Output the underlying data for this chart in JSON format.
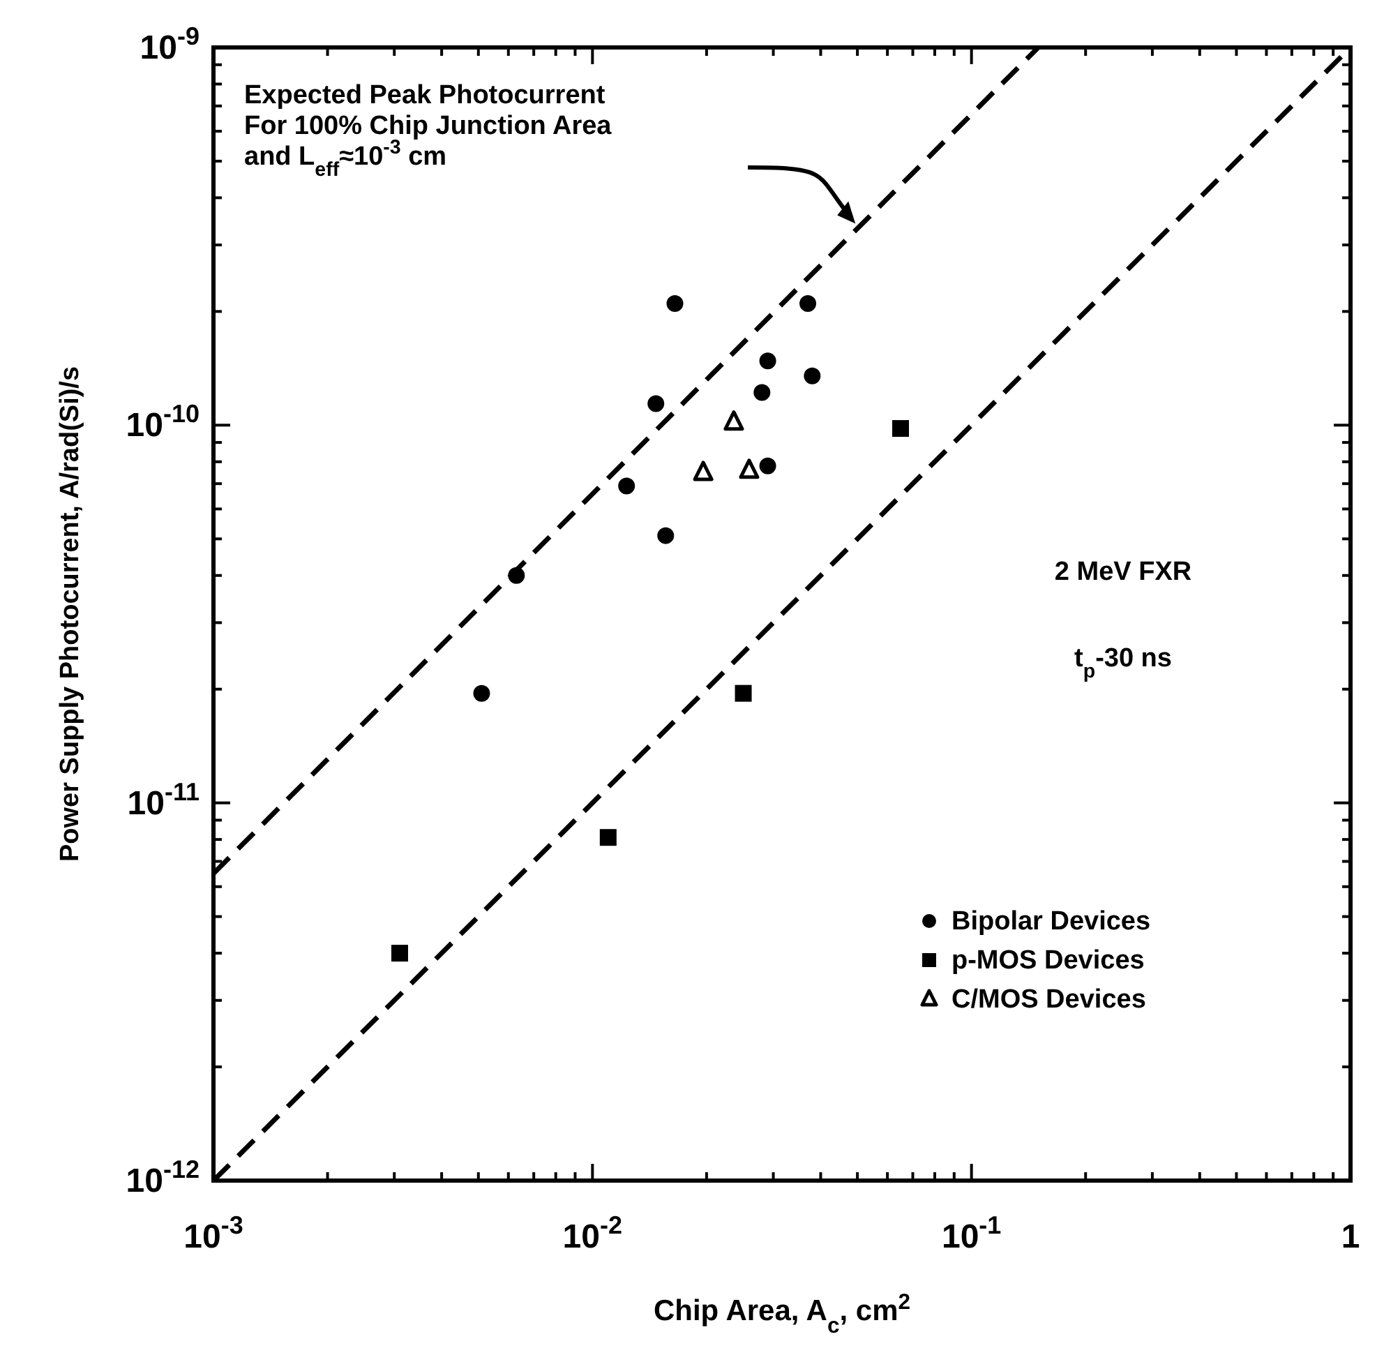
{
  "chart_data": {
    "type": "scatter",
    "xlabel": "Chip Area,  A$_{c}$, cm$^{2}$",
    "ylabel": "Power Supply Photocurrent, A/rad(Si)/s",
    "log": "xy",
    "xlim": [
      0.001,
      1
    ],
    "ylim": [
      1e-12,
      1e-09
    ],
    "xticks": [
      {
        "value": 0.001,
        "label": "10$^{-3}$"
      },
      {
        "value": 0.002,
        "label": null
      },
      {
        "value": 0.003,
        "label": null
      },
      {
        "value": 0.004,
        "label": null
      },
      {
        "value": 0.005,
        "label": null
      },
      {
        "value": 0.006,
        "label": null
      },
      {
        "value": 0.007,
        "label": null
      },
      {
        "value": 0.008,
        "label": null
      },
      {
        "value": 0.009,
        "label": null
      },
      {
        "value": 0.01,
        "label": "10$^{-2}$"
      },
      {
        "value": 0.02,
        "label": null
      },
      {
        "value": 0.03,
        "label": null
      },
      {
        "value": 0.04,
        "label": null
      },
      {
        "value": 0.05,
        "label": null
      },
      {
        "value": 0.06,
        "label": null
      },
      {
        "value": 0.07,
        "label": null
      },
      {
        "value": 0.08,
        "label": null
      },
      {
        "value": 0.09,
        "label": null
      },
      {
        "value": 0.1,
        "label": "10$^{-1}$"
      },
      {
        "value": 0.2,
        "label": null
      },
      {
        "value": 0.3,
        "label": null
      },
      {
        "value": 0.4,
        "label": null
      },
      {
        "value": 0.5,
        "label": null
      },
      {
        "value": 0.6,
        "label": null
      },
      {
        "value": 0.7,
        "label": null
      },
      {
        "value": 0.8,
        "label": null
      },
      {
        "value": 0.9,
        "label": null
      },
      1
    ],
    "yticks": [
      {
        "value": 1e-12,
        "label": "10$^{-12}$"
      },
      {
        "value": 2e-12,
        "label": null
      },
      {
        "value": 3e-12,
        "label": null
      },
      {
        "value": 4e-12,
        "label": null
      },
      {
        "value": 5e-12,
        "label": null
      },
      {
        "value": 6e-12,
        "label": null
      },
      {
        "value": 7e-12,
        "label": null
      },
      {
        "value": 8e-12,
        "label": null
      },
      {
        "value": 9e-12,
        "label": null
      },
      {
        "value": 1e-11,
        "label": "10$^{-11}$"
      },
      {
        "value": 2e-11,
        "label": null
      },
      {
        "value": 3e-11,
        "label": null
      },
      {
        "value": 4e-11,
        "label": null
      },
      {
        "value": 5e-11,
        "label": null
      },
      {
        "value": 6e-11,
        "label": null
      },
      {
        "value": 7e-11,
        "label": null
      },
      {
        "value": 8e-11,
        "label": null
      },
      {
        "value": 9e-11,
        "label": null
      },
      {
        "value": 1e-10,
        "label": "10$^{-10}$"
      },
      {
        "value": 2e-10,
        "label": null
      },
      {
        "value": 3e-10,
        "label": null
      },
      {
        "value": 4e-10,
        "label": null
      },
      {
        "value": 5e-10,
        "label": null
      },
      {
        "value": 6e-10,
        "label": null
      },
      {
        "value": 7e-10,
        "label": null
      },
      {
        "value": 8e-10,
        "label": null
      },
      {
        "value": 9e-10,
        "label": null
      },
      {
        "value": 1e-09,
        "label": "10$^{-9}$"
      }
    ],
    "grid": false,
    "legend": "bottom right",
    "series": [
      {
        "name": "Bipolar Devices",
        "color": "#000000",
        "marker": "circle",
        "x": [
          0.0051,
          0.0063,
          0.0123,
          0.0156,
          0.0147,
          0.0165,
          0.037,
          0.029,
          0.038,
          0.028,
          0.029
        ],
        "values": [
          1.95e-11,
          4e-11,
          6.9e-11,
          5.1e-11,
          1.14e-10,
          2.1e-10,
          2.1e-10,
          1.48e-10,
          1.35e-10,
          1.22e-10,
          7.8e-11
        ]
      },
      {
        "name": "p-MOS Devices",
        "color": "#000000",
        "marker": "square",
        "x": [
          0.0031,
          0.011,
          0.025,
          0.065
        ],
        "values": [
          4e-12,
          8.1e-12,
          1.95e-11,
          9.8e-11
        ]
      },
      {
        "name": "C/MOS Devices",
        "color": "#000000",
        "marker": "triangle",
        "x": [
          0.0236,
          0.0196,
          0.0259
        ],
        "values": [
          1.02e-10,
          7.5e-11,
          7.6e-11
        ]
      },
      {
        "type": "line",
        "color": "#000000",
        "line_style": "dashed",
        "x": [
          0.001,
          0.15
        ],
        "values": [
          6.5e-12,
          1e-09
        ]
      },
      {
        "type": "line",
        "color": "#000000",
        "line_style": "dashed",
        "x": [
          0.001,
          1
        ],
        "values": [
          1e-12,
          1e-09
        ]
      }
    ],
    "annotations": [
      "Expected Peak Photocurrent\nFor 100% Chip Junction Area\nand L$_{eff}$≈10$^{-3}$ cm",
      "2 MeV FXR",
      "t$_{p}$-30 ns"
    ]
  }
}
